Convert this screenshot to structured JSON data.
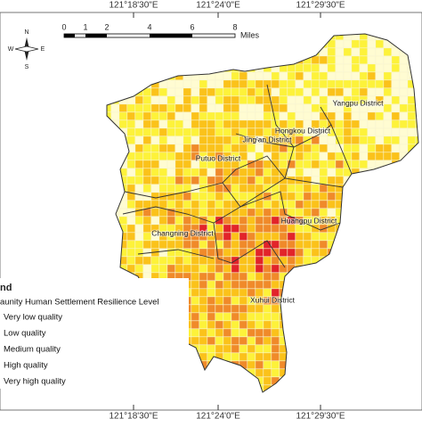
{
  "axes": {
    "top": [
      "121°18'30\"E",
      "121°24'0\"E",
      "121°29'30\"E"
    ],
    "bottom": [
      "121°18'30\"E",
      "121°24'0\"E",
      "121°29'30\"E"
    ]
  },
  "scale_bar": {
    "ticks": [
      "0",
      "1",
      "2",
      "4",
      "6",
      "8"
    ],
    "unit": "Miles"
  },
  "compass": {
    "n": "N",
    "e": "E",
    "s": "S",
    "w": "W"
  },
  "districts": [
    {
      "label": "Yangpu District"
    },
    {
      "label": "Hongkou District"
    },
    {
      "label": "Jing'an District"
    },
    {
      "label": "Putuo District"
    },
    {
      "label": "Huangpu District"
    },
    {
      "label": "Changning District"
    },
    {
      "label": "Xuhui District"
    }
  ],
  "legend": {
    "title": "nd",
    "subtitle": "aunity Human Settlement Resilience Level",
    "items": [
      {
        "label": "Very low quality",
        "color": "#fffcd2"
      },
      {
        "label": "Low quality",
        "color": "#fdf23a"
      },
      {
        "label": "Medium quality",
        "color": "#fbc21a"
      },
      {
        "label": "High quality",
        "color": "#f08a2a"
      },
      {
        "label": "Very high quality",
        "color": "#e2242a"
      }
    ]
  }
}
